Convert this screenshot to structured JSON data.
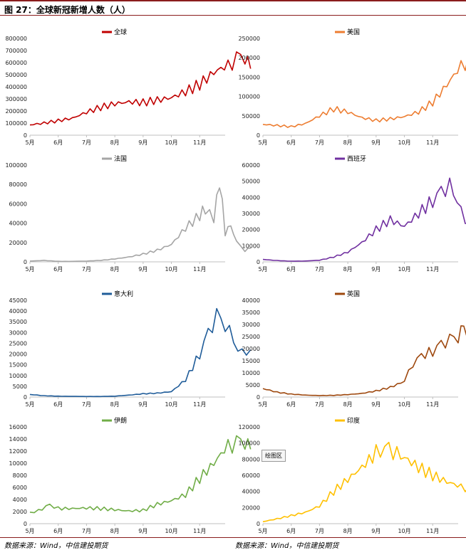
{
  "figure": {
    "title": "图 27：全球新冠新增人数（人）",
    "source_left": "数据来源：Wind，中信建投期货",
    "source_right": "数据来源：Wind，中信建投期货",
    "tag_label": "绘图区"
  },
  "chart_data": [
    {
      "type": "line",
      "legend": "全球",
      "color": "#c00000",
      "x_ticks": [
        "5月",
        "6月",
        "7月",
        "8月",
        "9月",
        "10月",
        "11月"
      ],
      "y_ticks": [
        0,
        100000,
        200000,
        300000,
        400000,
        500000,
        600000,
        700000,
        800000
      ],
      "ylim": [
        0,
        800000
      ],
      "points": [
        [
          0,
          85000
        ],
        [
          0.5,
          100000
        ],
        [
          1,
          120000
        ],
        [
          1.5,
          140000
        ],
        [
          2,
          190000
        ],
        [
          2.5,
          230000
        ],
        [
          3,
          260000
        ],
        [
          3.5,
          275000
        ],
        [
          4,
          270000
        ],
        [
          4.5,
          290000
        ],
        [
          5,
          310000
        ],
        [
          5.5,
          360000
        ],
        [
          6,
          420000
        ],
        [
          6.5,
          520000
        ],
        [
          7,
          580000
        ],
        [
          7.3,
          640000
        ],
        [
          7.6,
          660000
        ],
        [
          7.8,
          550000
        ]
      ]
    },
    {
      "type": "line",
      "legend": "美国",
      "color": "#ed7d31",
      "x_ticks": [
        "5月",
        "6月",
        "7月",
        "8月",
        "9月",
        "10月",
        "11月"
      ],
      "y_ticks": [
        0,
        50000,
        100000,
        150000,
        200000,
        250000
      ],
      "ylim": [
        0,
        250000
      ],
      "points": [
        [
          0,
          28000
        ],
        [
          0.5,
          25000
        ],
        [
          1,
          22000
        ],
        [
          1.5,
          30000
        ],
        [
          2,
          50000
        ],
        [
          2.5,
          68000
        ],
        [
          3,
          60000
        ],
        [
          3.5,
          45000
        ],
        [
          4,
          38000
        ],
        [
          4.5,
          42000
        ],
        [
          5,
          48000
        ],
        [
          5.5,
          60000
        ],
        [
          6,
          85000
        ],
        [
          6.5,
          130000
        ],
        [
          7,
          180000
        ],
        [
          7.3,
          200000
        ],
        [
          7.6,
          230000
        ],
        [
          7.8,
          210000
        ]
      ]
    },
    {
      "type": "line",
      "legend": "法国",
      "color": "#a5a5a5",
      "x_ticks": [
        "5月",
        "6月",
        "7月",
        "8月",
        "9月",
        "10月",
        "11月"
      ],
      "y_ticks": [
        0,
        20000,
        40000,
        60000,
        80000,
        100000
      ],
      "ylim": [
        0,
        100000
      ],
      "points": [
        [
          0,
          800
        ],
        [
          0.5,
          1500
        ],
        [
          1,
          500
        ],
        [
          1.5,
          500
        ],
        [
          2,
          800
        ],
        [
          2.5,
          1500
        ],
        [
          3,
          3000
        ],
        [
          3.5,
          5000
        ],
        [
          4,
          8000
        ],
        [
          4.5,
          12000
        ],
        [
          5,
          18000
        ],
        [
          5.5,
          35000
        ],
        [
          6,
          48000
        ],
        [
          6.2,
          55000
        ],
        [
          6.5,
          42000
        ],
        [
          6.7,
          86000
        ],
        [
          6.9,
          30000
        ],
        [
          7.1,
          38000
        ],
        [
          7.3,
          20000
        ],
        [
          7.6,
          12000
        ],
        [
          7.8,
          14000
        ]
      ]
    },
    {
      "type": "line",
      "legend": "西班牙",
      "color": "#7030a0",
      "x_ticks": [
        "5月",
        "6月",
        "7月",
        "8月",
        "9月",
        "10月",
        "11月"
      ],
      "y_ticks": [
        0,
        10000,
        20000,
        30000,
        40000,
        50000,
        60000
      ],
      "ylim": [
        0,
        60000
      ],
      "points": [
        [
          0,
          1500
        ],
        [
          0.5,
          800
        ],
        [
          1,
          400
        ],
        [
          1.5,
          500
        ],
        [
          2,
          1000
        ],
        [
          2.5,
          3000
        ],
        [
          3,
          6000
        ],
        [
          3.5,
          12000
        ],
        [
          4,
          20000
        ],
        [
          4.5,
          26000
        ],
        [
          5,
          22000
        ],
        [
          5.5,
          30000
        ],
        [
          6,
          38000
        ],
        [
          6.3,
          44000
        ],
        [
          6.6,
          48000
        ],
        [
          7,
          32000
        ],
        [
          7.3,
          22000
        ],
        [
          7.6,
          10000
        ],
        [
          7.8,
          9000
        ]
      ]
    },
    {
      "type": "line",
      "legend": "意大利",
      "color": "#1f5c99",
      "x_ticks": [
        "5月",
        "6月",
        "7月",
        "8月",
        "9月",
        "10月",
        "11月"
      ],
      "y_ticks": [
        0,
        5000,
        10000,
        15000,
        20000,
        25000,
        30000,
        35000,
        40000,
        45000
      ],
      "ylim": [
        0,
        45000
      ],
      "points": [
        [
          0,
          1200
        ],
        [
          0.5,
          600
        ],
        [
          1,
          400
        ],
        [
          1.5,
          300
        ],
        [
          2,
          250
        ],
        [
          2.5,
          250
        ],
        [
          3,
          400
        ],
        [
          3.5,
          900
        ],
        [
          4,
          1500
        ],
        [
          4.5,
          1800
        ],
        [
          5,
          2500
        ],
        [
          5.5,
          8000
        ],
        [
          6,
          20000
        ],
        [
          6.3,
          30000
        ],
        [
          6.6,
          38000
        ],
        [
          6.9,
          34000
        ],
        [
          7.2,
          26000
        ],
        [
          7.5,
          20000
        ],
        [
          7.8,
          22000
        ]
      ]
    },
    {
      "type": "line",
      "legend": "英国",
      "color": "#9e480e",
      "x_ticks": [
        "5月",
        "6月",
        "7月",
        "8月",
        "9月",
        "10月",
        "11月"
      ],
      "y_ticks": [
        0,
        5000,
        10000,
        15000,
        20000,
        25000,
        30000,
        35000,
        40000
      ],
      "ylim": [
        0,
        40000
      ],
      "points": [
        [
          0,
          3500
        ],
        [
          0.5,
          2000
        ],
        [
          1,
          1200
        ],
        [
          1.5,
          800
        ],
        [
          2,
          600
        ],
        [
          2.5,
          700
        ],
        [
          3,
          1000
        ],
        [
          3.5,
          1500
        ],
        [
          4,
          2500
        ],
        [
          4.5,
          4000
        ],
        [
          5,
          6500
        ],
        [
          5.3,
          14000
        ],
        [
          5.6,
          17000
        ],
        [
          6,
          19000
        ],
        [
          6.3,
          22000
        ],
        [
          6.6,
          24000
        ],
        [
          6.9,
          25000
        ],
        [
          7.1,
          30000
        ],
        [
          7.3,
          22000
        ],
        [
          7.6,
          15000
        ],
        [
          7.8,
          15500
        ]
      ]
    },
    {
      "type": "line",
      "legend": "伊朗",
      "color": "#70ad47",
      "x_ticks": [
        "5月",
        "6月",
        "7月",
        "8月",
        "9月",
        "10月",
        "11月"
      ],
      "y_ticks": [
        0,
        2000,
        4000,
        6000,
        8000,
        10000,
        12000,
        14000,
        16000
      ],
      "ylim": [
        0,
        16000
      ],
      "points": [
        [
          0,
          1900
        ],
        [
          0.3,
          2100
        ],
        [
          0.7,
          3200
        ],
        [
          1,
          2500
        ],
        [
          1.5,
          2500
        ],
        [
          2,
          2600
        ],
        [
          2.5,
          2500
        ],
        [
          3,
          2300
        ],
        [
          3.5,
          2100
        ],
        [
          4,
          2200
        ],
        [
          4.5,
          3200
        ],
        [
          5,
          3800
        ],
        [
          5.5,
          4800
        ],
        [
          6,
          7500
        ],
        [
          6.5,
          10000
        ],
        [
          7,
          13000
        ],
        [
          7.3,
          13500
        ],
        [
          7.6,
          13800
        ],
        [
          7.8,
          12300
        ]
      ]
    },
    {
      "type": "line",
      "legend": "印度",
      "color": "#ffc000",
      "x_ticks": [
        "5月",
        "6月",
        "7月",
        "8月",
        "9月",
        "10月",
        "11月"
      ],
      "y_ticks": [
        0,
        20000,
        40000,
        60000,
        80000,
        100000,
        120000
      ],
      "ylim": [
        0,
        120000
      ],
      "points": [
        [
          0,
          2500
        ],
        [
          0.5,
          6000
        ],
        [
          1,
          10000
        ],
        [
          1.5,
          14000
        ],
        [
          2,
          22000
        ],
        [
          2.5,
          40000
        ],
        [
          3,
          55000
        ],
        [
          3.5,
          70000
        ],
        [
          4,
          88000
        ],
        [
          4.3,
          95000
        ],
        [
          4.6,
          90000
        ],
        [
          5,
          82000
        ],
        [
          5.5,
          70000
        ],
        [
          6,
          60000
        ],
        [
          6.5,
          52000
        ],
        [
          7,
          46000
        ],
        [
          7.3,
          44000
        ],
        [
          7.6,
          40000
        ],
        [
          7.8,
          36000
        ]
      ]
    }
  ]
}
